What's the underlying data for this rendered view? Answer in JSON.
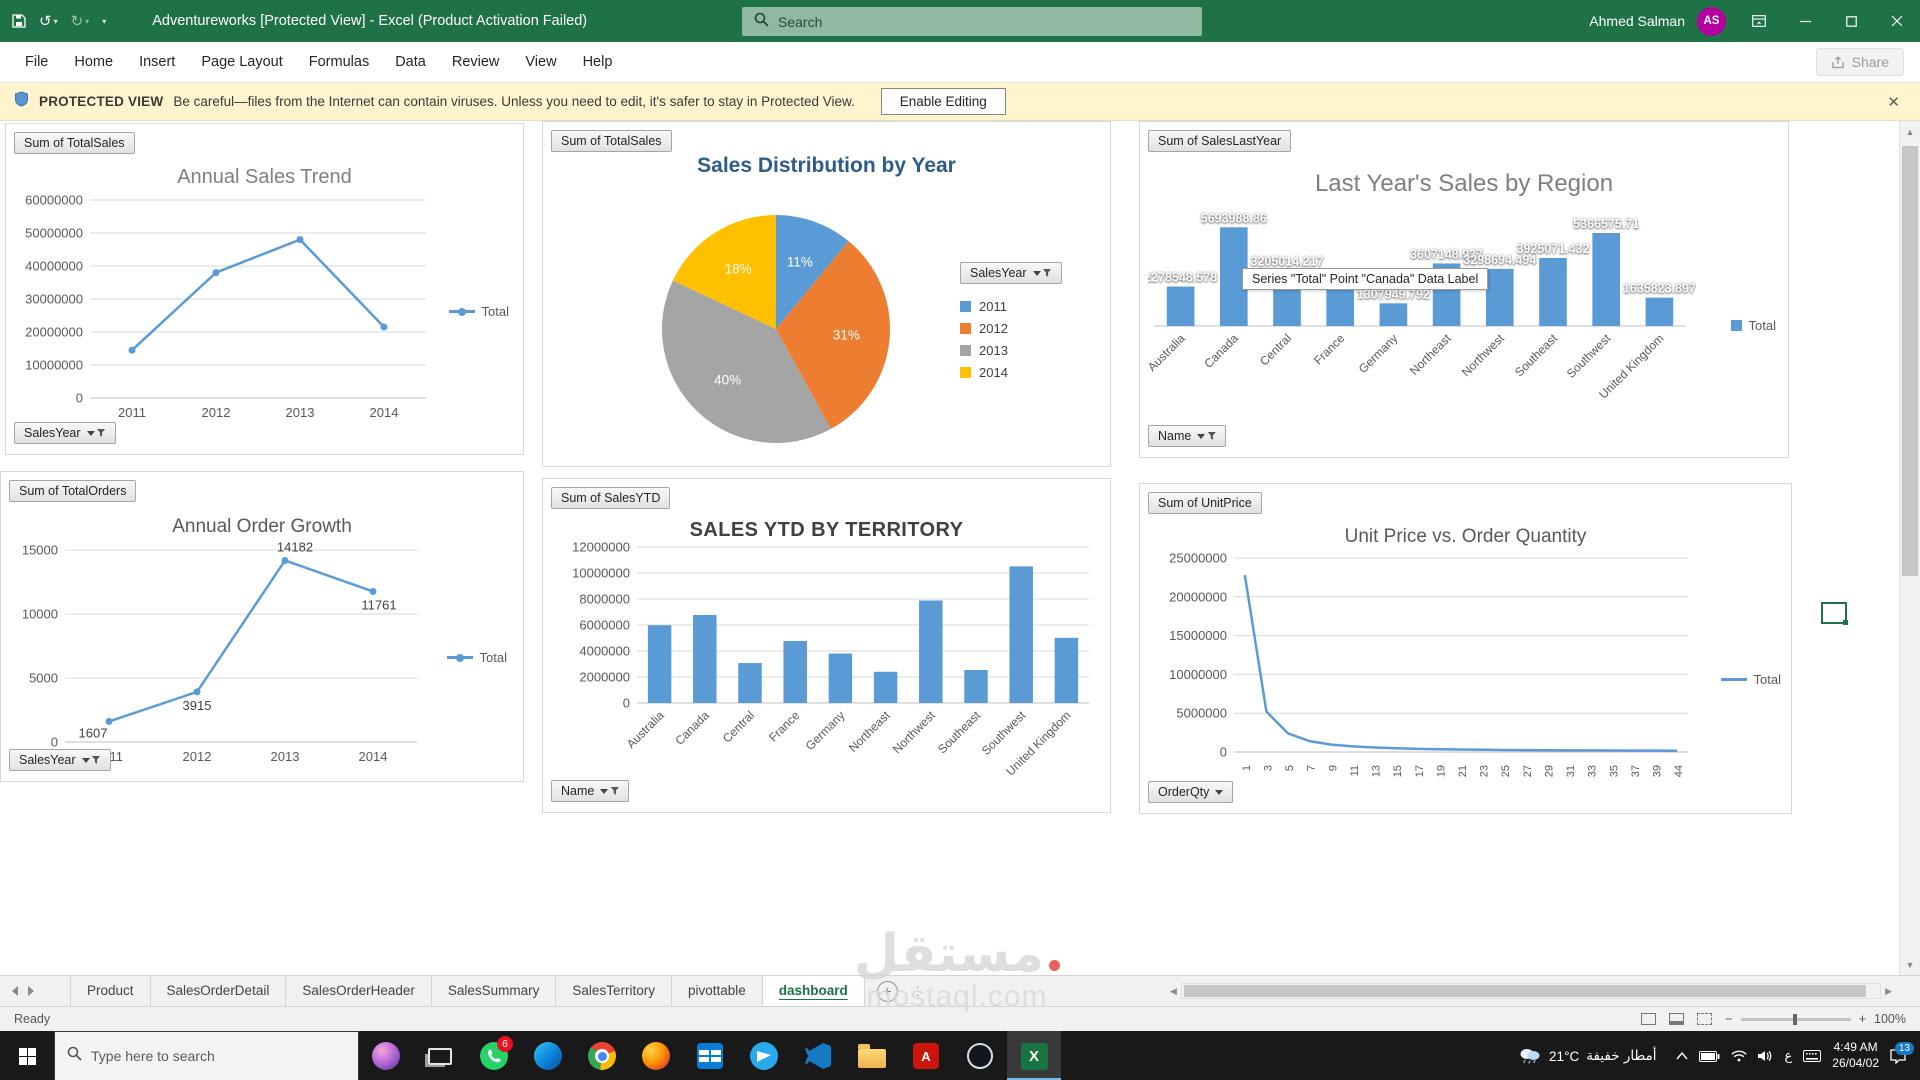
{
  "titlebar": {
    "title": "Adventureworks  [Protected View]  -  Excel (Product Activation Failed)",
    "search_placeholder": "Search",
    "user_name": "Ahmed Salman",
    "user_initials": "AS"
  },
  "menubar": {
    "items": [
      "File",
      "Home",
      "Insert",
      "Page Layout",
      "Formulas",
      "Data",
      "Review",
      "View",
      "Help"
    ],
    "share_label": "Share"
  },
  "protected_bar": {
    "label": "PROTECTED VIEW",
    "message": "Be careful—files from the Internet can contain viruses. Unless you need to edit, it's safer to stay in Protected View.",
    "button_label": "Enable Editing"
  },
  "chart_data": [
    {
      "id": "annual-sales-trend",
      "type": "line",
      "title": "Annual Sales Trend",
      "field_button": "Sum of TotalSales",
      "axis_field_button": "SalesYear",
      "legend": [
        "Total"
      ],
      "legend_position": "right",
      "categories": [
        "2011",
        "2012",
        "2013",
        "2014"
      ],
      "values": [
        14500000,
        38000000,
        48000000,
        21500000
      ],
      "ylim": [
        0,
        60000000
      ],
      "ytick": 10000000,
      "grid": true,
      "color": "#5B9BD5"
    },
    {
      "id": "sales-distribution-by-year",
      "type": "pie",
      "title": "Sales Distribution by Year",
      "field_button": "Sum of TotalSales",
      "legend_field_button": "SalesYear",
      "legend_position": "right",
      "categories": [
        "2011",
        "2012",
        "2013",
        "2014"
      ],
      "values": [
        11,
        31,
        40,
        18
      ],
      "labels": [
        "11%",
        "31%",
        "40%",
        "18%"
      ],
      "colors": [
        "#5B9BD5",
        "#ED7D31",
        "#A5A5A5",
        "#FFC000"
      ]
    },
    {
      "id": "last-years-sales-by-region",
      "type": "bar",
      "title": "Last Year's Sales by Region",
      "field_button": "Sum of SalesLastYear",
      "axis_field_button": "Name",
      "legend": [
        "Total"
      ],
      "legend_position": "right",
      "tooltip": "Series \"Total\" Point \"Canada\" Data Label",
      "categories": [
        "Australia",
        "Canada",
        "Central",
        "France",
        "Germany",
        "Northeast",
        "Northwest",
        "Southeast",
        "Southwest",
        "United Kingdom"
      ],
      "values": [
        2278548.578,
        5693988.86,
        3205014.217,
        2396539.76,
        1307949.792,
        3607148.937,
        3298694.494,
        3925071.432,
        5366575.71,
        1635823.897
      ],
      "labels": [
        "2278548.578",
        "5693988.86",
        "3205014.217",
        "2396539.76",
        "1307949.792",
        "3607148.937",
        "3298694.494",
        "3925071.432",
        "5366575.71",
        "1635823.897"
      ],
      "ylim": [
        0,
        6000000
      ],
      "grid": false,
      "data_labels": true,
      "color": "#5B9BD5"
    },
    {
      "id": "annual-order-growth",
      "type": "line",
      "title": "Annual Order Growth",
      "field_button": "Sum of TotalOrders",
      "axis_field_button": "SalesYear",
      "legend": [
        "Total"
      ],
      "legend_position": "right",
      "categories": [
        "2011",
        "2012",
        "2013",
        "2014"
      ],
      "values": [
        1607,
        3915,
        14182,
        11761
      ],
      "labels": [
        "1607",
        "3915",
        "14182",
        "11761"
      ],
      "ylim": [
        0,
        15000
      ],
      "ytick": 5000,
      "grid": true,
      "data_labels": true,
      "color": "#5B9BD5"
    },
    {
      "id": "sales-ytd-by-territory",
      "type": "bar",
      "title": "SALES YTD BY TERRITORY",
      "field_button": "Sum of SalesYTD",
      "axis_field_button": "Name",
      "categories": [
        "Australia",
        "Canada",
        "Central",
        "France",
        "Germany",
        "Northeast",
        "Northwest",
        "Southeast",
        "Southwest",
        "United Kingdom"
      ],
      "values": [
        5977814.915,
        6771829.138,
        3072175.118,
        4772398.308,
        3805202.348,
        2402176.852,
        7887186.788,
        2538667.976,
        10510853.874,
        5012905.366
      ],
      "ylim": [
        0,
        12000000
      ],
      "ytick": 2000000,
      "grid": true,
      "color": "#5B9BD5"
    },
    {
      "id": "unit-price-vs-order-quantity",
      "type": "line",
      "title": "Unit Price vs. Order Quantity",
      "field_button": "Sum of UnitPrice",
      "axis_field_button": "OrderQty",
      "legend": [
        "Total"
      ],
      "legend_position": "right",
      "categories": [
        "1",
        "3",
        "5",
        "7",
        "9",
        "11",
        "13",
        "15",
        "17",
        "19",
        "21",
        "23",
        "25",
        "27",
        "29",
        "31",
        "33",
        "35",
        "37",
        "39",
        "44"
      ],
      "values": [
        22800000,
        5200000,
        2400000,
        1400000,
        950000,
        720000,
        580000,
        480000,
        410000,
        360000,
        320000,
        290000,
        265000,
        245000,
        228000,
        214000,
        202000,
        192000,
        183000,
        175000,
        168000
      ],
      "ylim": [
        0,
        25000000
      ],
      "ytick": 5000000,
      "grid": true,
      "markers": false,
      "color": "#5B9BD5"
    }
  ],
  "sheet_tabs": {
    "tabs": [
      "Product",
      "SalesOrderDetail",
      "SalesOrderHeader",
      "SalesSummary",
      "SalesTerritory",
      "pivottable",
      "dashboard"
    ],
    "active_tab": "dashboard"
  },
  "statusbar": {
    "ready": "Ready",
    "zoom": "100%"
  },
  "taskbar": {
    "search_placeholder": "Type here to search",
    "whatsapp_badge": "6",
    "weather_temp": "21°C",
    "weather_desc": "أمطار خفيفة",
    "language_indicator": "ع",
    "time": "4:49 AM",
    "date": "26/04/02",
    "notification_count": "13"
  },
  "watermark": {
    "arabic": "مستقل",
    "domain": "mostaql.com"
  }
}
